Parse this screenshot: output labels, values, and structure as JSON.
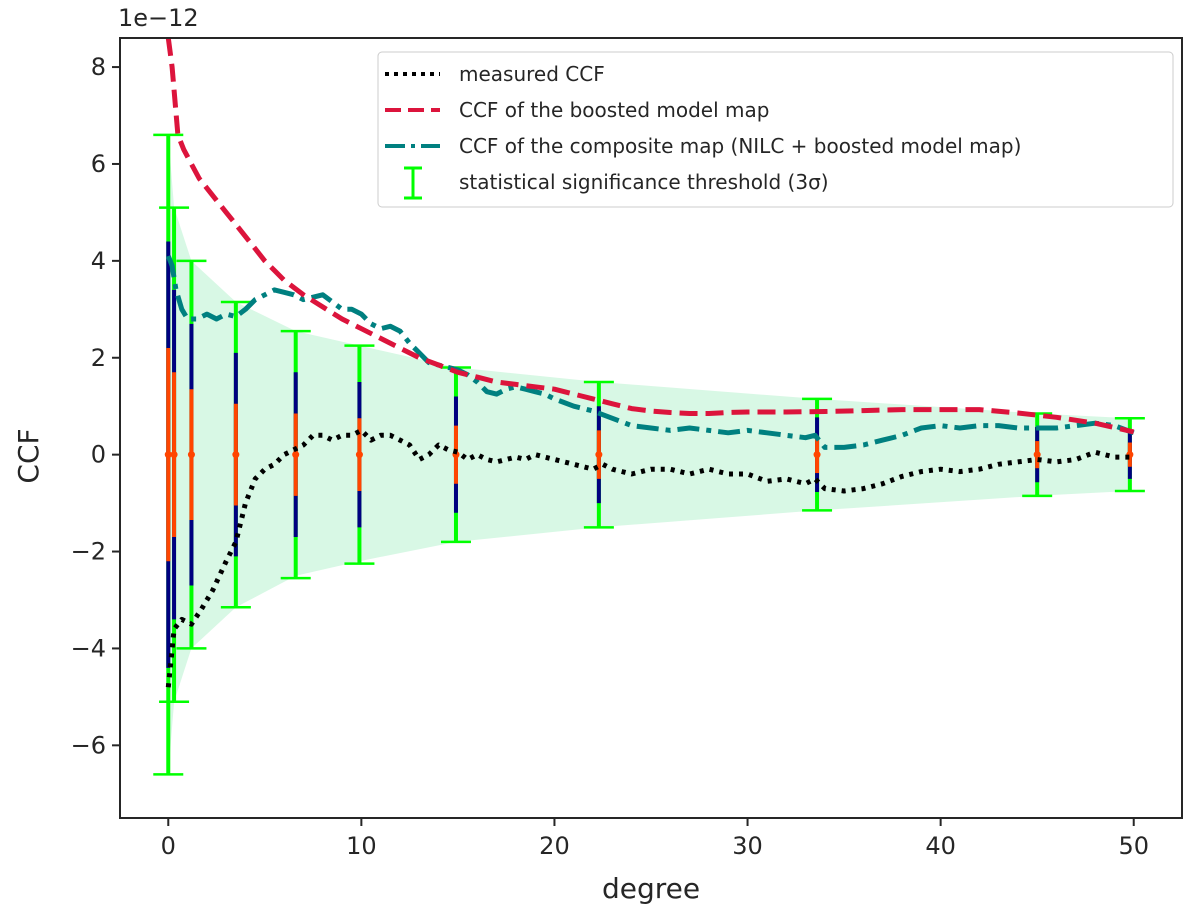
{
  "chart_data": {
    "type": "line",
    "xlabel": "degree",
    "ylabel": "CCF",
    "y_offset_text": "1e−12",
    "xlim": [
      -2.5,
      52.5
    ],
    "ylim": [
      -7.5,
      8.6
    ],
    "xticks": [
      0,
      10,
      20,
      30,
      40,
      50
    ],
    "yticks": [
      -6,
      -4,
      -2,
      0,
      2,
      4,
      6,
      8
    ],
    "ytick_labels": [
      "−6",
      "−4",
      "−2",
      "0",
      "2",
      "4",
      "6",
      "8"
    ],
    "legend": {
      "position": "top-right",
      "entries": [
        {
          "label": "measured CCF",
          "style": "dotted",
          "color": "#000000"
        },
        {
          "label": "CCF of the boosted model map",
          "style": "dashed",
          "color": "#dc143c"
        },
        {
          "label": "CCF of the composite map (NILC + boosted model map)",
          "style": "dashdot",
          "color": "#008080"
        },
        {
          "label": "statistical significance threshold (3σ)",
          "style": "errorbar",
          "color": "#00ff00"
        }
      ]
    },
    "series": [
      {
        "name": "measured CCF",
        "color": "#000000",
        "x": [
          0,
          0.3,
          0.7,
          1.2,
          1.7,
          2.3,
          3,
          3.5,
          4,
          4.5,
          5,
          5.5,
          6,
          6.5,
          7,
          7.5,
          8,
          8.5,
          9,
          9.5,
          10,
          10.5,
          11,
          11.5,
          12,
          12.5,
          13,
          13.5,
          14,
          14.5,
          15,
          15.5,
          16,
          16.5,
          17,
          17.5,
          18,
          18.5,
          19,
          19.5,
          20,
          21,
          22,
          22.5,
          23,
          24,
          25,
          26,
          27,
          28,
          29,
          30,
          31,
          32,
          33,
          33.5,
          34,
          35,
          36,
          37,
          38,
          39,
          40,
          41,
          42,
          43,
          44,
          45,
          46,
          47,
          48,
          49,
          50
        ],
        "y": [
          -4.8,
          -3.6,
          -3.4,
          -3.5,
          -3.2,
          -2.8,
          -2.2,
          -1.8,
          -1.0,
          -0.5,
          -0.3,
          -0.2,
          0.0,
          0.1,
          0.2,
          0.4,
          0.4,
          0.3,
          0.4,
          0.4,
          0.5,
          0.3,
          0.4,
          0.4,
          0.3,
          0.2,
          -0.1,
          0.0,
          0.2,
          0.1,
          0.05,
          -0.1,
          0.0,
          -0.1,
          -0.15,
          -0.1,
          -0.05,
          -0.1,
          0.0,
          -0.05,
          -0.1,
          -0.2,
          -0.3,
          -0.2,
          -0.3,
          -0.4,
          -0.3,
          -0.3,
          -0.4,
          -0.3,
          -0.4,
          -0.4,
          -0.55,
          -0.5,
          -0.6,
          -0.5,
          -0.7,
          -0.75,
          -0.7,
          -0.6,
          -0.45,
          -0.35,
          -0.3,
          -0.35,
          -0.3,
          -0.2,
          -0.15,
          -0.1,
          -0.15,
          -0.1,
          0.05,
          -0.05,
          -0.05
        ]
      },
      {
        "name": "CCF of the boosted model map",
        "color": "#dc143c",
        "x": [
          0,
          0.2,
          0.5,
          0.8,
          1.2,
          1.6,
          2,
          2.5,
          3,
          3.5,
          4,
          4.5,
          5,
          5.5,
          6,
          7,
          8,
          9,
          10,
          11,
          12,
          13,
          14,
          15,
          16,
          17,
          18,
          19,
          20,
          21,
          22,
          23,
          24,
          25,
          26,
          27,
          28,
          29,
          30,
          32,
          34,
          36,
          38,
          40,
          42,
          44,
          46,
          48,
          50
        ],
        "y": [
          8.6,
          8.0,
          6.6,
          6.3,
          6.0,
          5.7,
          5.5,
          5.25,
          5.0,
          4.75,
          4.5,
          4.25,
          4.0,
          3.8,
          3.6,
          3.3,
          3.05,
          2.8,
          2.6,
          2.4,
          2.2,
          2.0,
          1.85,
          1.7,
          1.6,
          1.5,
          1.45,
          1.4,
          1.35,
          1.25,
          1.15,
          1.05,
          0.95,
          0.9,
          0.87,
          0.85,
          0.85,
          0.87,
          0.88,
          0.88,
          0.89,
          0.91,
          0.93,
          0.93,
          0.93,
          0.86,
          0.77,
          0.65,
          0.47
        ]
      },
      {
        "name": "CCF of the composite map (NILC + boosted model map)",
        "color": "#008080",
        "x": [
          0,
          0.2,
          0.4,
          0.7,
          1,
          1.5,
          2,
          2.5,
          3,
          3.5,
          4,
          4.5,
          5,
          5.5,
          6,
          6.5,
          7,
          7.5,
          8,
          8.5,
          9,
          9.5,
          10,
          10.5,
          11,
          11.5,
          12,
          12.5,
          13,
          13.5,
          14,
          14.5,
          15,
          15.5,
          16,
          16.5,
          17,
          17.5,
          18,
          18.5,
          19,
          19.5,
          20,
          21,
          22,
          23,
          24,
          25,
          26,
          27,
          28,
          29,
          30,
          31,
          32,
          33,
          33.5,
          34,
          35,
          36,
          37,
          38,
          39,
          40,
          41,
          42,
          43,
          44,
          45,
          46,
          47,
          48,
          49,
          50
        ],
        "y": [
          4.1,
          3.9,
          3.4,
          3.0,
          2.8,
          2.8,
          2.9,
          2.8,
          2.9,
          2.85,
          3.0,
          3.2,
          3.3,
          3.4,
          3.35,
          3.3,
          3.2,
          3.25,
          3.3,
          3.15,
          3.0,
          3.0,
          2.9,
          2.7,
          2.6,
          2.65,
          2.55,
          2.3,
          2.1,
          1.9,
          1.85,
          1.8,
          1.75,
          1.65,
          1.5,
          1.3,
          1.25,
          1.35,
          1.4,
          1.35,
          1.3,
          1.25,
          1.15,
          1.0,
          0.9,
          0.75,
          0.6,
          0.55,
          0.5,
          0.55,
          0.5,
          0.45,
          0.5,
          0.45,
          0.4,
          0.35,
          0.4,
          0.15,
          0.15,
          0.2,
          0.3,
          0.4,
          0.55,
          0.6,
          0.55,
          0.6,
          0.6,
          0.55,
          0.55,
          0.55,
          0.6,
          0.65,
          0.6,
          0.45
        ]
      }
    ],
    "threshold_band": {
      "name": "statistical significance threshold (3σ)",
      "fill_color": "#a8f0c6",
      "x": [
        0,
        0.3,
        1.2,
        3.5,
        6.6,
        9.9,
        14.9,
        22.3,
        33.6,
        45,
        49.8
      ],
      "upper": [
        6.6,
        5.1,
        4.0,
        3.15,
        2.55,
        2.25,
        1.8,
        1.5,
        1.15,
        0.85,
        0.75
      ],
      "lower": [
        -6.6,
        -5.1,
        -4.0,
        -3.15,
        -2.5,
        -2.2,
        -1.8,
        -1.5,
        -1.15,
        -0.85,
        -0.75
      ]
    },
    "error_bars": {
      "name": "statistical significance threshold (3σ)",
      "center": 0,
      "colors": {
        "3sigma": "#00ff00",
        "2sigma": "#000080",
        "1sigma": "#ff4500"
      },
      "x": [
        0,
        0.3,
        1.2,
        3.5,
        6.6,
        9.9,
        14.9,
        22.3,
        33.6,
        45,
        49.8
      ],
      "three_sigma": [
        6.6,
        5.1,
        4.0,
        3.15,
        2.55,
        2.25,
        1.8,
        1.5,
        1.15,
        0.85,
        0.75
      ],
      "two_sigma": [
        4.4,
        3.4,
        2.7,
        2.1,
        1.7,
        1.5,
        1.2,
        1.0,
        0.77,
        0.57,
        0.5
      ],
      "one_sigma": [
        2.2,
        1.7,
        1.35,
        1.05,
        0.85,
        0.75,
        0.6,
        0.5,
        0.38,
        0.28,
        0.25
      ]
    }
  }
}
